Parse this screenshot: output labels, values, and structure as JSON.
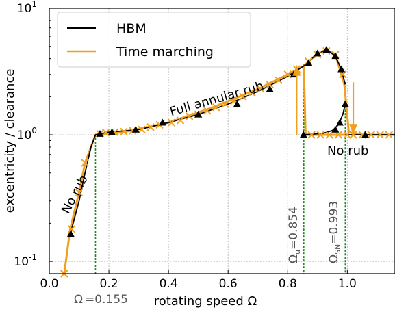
{
  "chart_data": {
    "type": "line",
    "xlabel": "rotating speed Ω",
    "ylabel": "excentricity / clearance",
    "xlim": [
      0.0,
      1.16
    ],
    "ylim": [
      0.08,
      10
    ],
    "y_scale": "log",
    "grid": true,
    "legend_position": "top-left",
    "x_ticks": [
      "0.0",
      "0.2",
      "0.4",
      "0.6",
      "0.8",
      "1.0"
    ],
    "x_tick_values": [
      0.0,
      0.2,
      0.4,
      0.6,
      0.8,
      1.0
    ],
    "y_ticks": [
      {
        "base": "10",
        "exp": "-1",
        "value": 0.1
      },
      {
        "base": "10",
        "exp": "0",
        "value": 1
      },
      {
        "base": "10",
        "exp": "1",
        "value": 10
      }
    ],
    "series": [
      {
        "name": "HBM",
        "color": "#000000",
        "marker": "triangle",
        "segments": [
          [
            [
              0.07,
              0.16
            ],
            [
              0.08,
              0.2
            ],
            [
              0.1,
              0.3
            ],
            [
              0.12,
              0.5
            ],
            [
              0.14,
              0.8
            ],
            [
              0.155,
              1.0
            ],
            [
              0.2,
              1.05
            ],
            [
              0.3,
              1.1
            ],
            [
              0.4,
              1.25
            ],
            [
              0.5,
              1.45
            ],
            [
              0.6,
              1.75
            ],
            [
              0.7,
              2.2
            ],
            [
              0.8,
              2.9
            ],
            [
              0.854,
              3.5
            ],
            [
              0.9,
              4.4
            ],
            [
              0.93,
              4.7
            ],
            [
              0.96,
              4.2
            ],
            [
              0.98,
              3.3
            ],
            [
              0.993,
              2.5
            ]
          ],
          [
            [
              0.854,
              1.0
            ],
            [
              0.88,
              1.01
            ],
            [
              0.92,
              1.03
            ],
            [
              0.95,
              1.08
            ],
            [
              0.97,
              1.2
            ],
            [
              0.985,
              1.45
            ],
            [
              0.993,
              1.75
            ]
          ],
          [
            [
              0.993,
              1.0
            ],
            [
              1.05,
              1.0
            ],
            [
              1.1,
              1.0
            ],
            [
              1.16,
              1.0
            ]
          ]
        ],
        "markers": [
          [
            0.072,
            0.165
          ],
          [
            0.17,
            1.02
          ],
          [
            0.21,
            1.05
          ],
          [
            0.29,
            1.1
          ],
          [
            0.38,
            1.25
          ],
          [
            0.5,
            1.45
          ],
          [
            0.63,
            1.75
          ],
          [
            0.74,
            2.3
          ],
          [
            0.82,
            3.0
          ],
          [
            0.87,
            3.7
          ],
          [
            0.9,
            4.4
          ],
          [
            0.93,
            4.7
          ],
          [
            0.96,
            4.2
          ],
          [
            0.98,
            3.3
          ],
          [
            0.993,
            1.75
          ],
          [
            0.96,
            1.1
          ],
          [
            0.975,
            1.25
          ],
          [
            0.853,
            1.0
          ],
          [
            1.06,
            1.0
          ]
        ]
      },
      {
        "name": "Time marching",
        "color": "#f0a020",
        "marker": "x",
        "segments": [
          [
            [
              0.05,
              0.08
            ],
            [
              0.07,
              0.18
            ],
            [
              0.1,
              0.35
            ],
            [
              0.12,
              0.6
            ],
            [
              0.155,
              1.0
            ],
            [
              0.25,
              1.05
            ],
            [
              0.4,
              1.25
            ],
            [
              0.55,
              1.65
            ],
            [
              0.7,
              2.3
            ],
            [
              0.8,
              3.0
            ],
            [
              0.854,
              3.5
            ],
            [
              0.9,
              4.4
            ],
            [
              0.93,
              4.7
            ],
            [
              0.96,
              4.3
            ],
            [
              0.99,
              2.5
            ],
            [
              1.005,
              1.05
            ],
            [
              1.05,
              1.0
            ],
            [
              1.16,
              1.0
            ]
          ],
          [
            [
              0.854,
              3.5
            ],
            [
              0.86,
              1.0
            ],
            [
              0.88,
              1.0
            ],
            [
              0.97,
              1.0
            ],
            [
              1.0,
              1.0
            ]
          ]
        ],
        "markers": [
          [
            0.05,
            0.08
          ],
          [
            0.075,
            0.18
          ],
          [
            0.1,
            0.35
          ],
          [
            0.12,
            0.6
          ],
          [
            0.17,
            1.02
          ],
          [
            0.19,
            1.04
          ],
          [
            0.22,
            1.05
          ],
          [
            0.25,
            1.06
          ],
          [
            0.28,
            1.08
          ],
          [
            0.31,
            1.1
          ],
          [
            0.34,
            1.15
          ],
          [
            0.37,
            1.2
          ],
          [
            0.41,
            1.25
          ],
          [
            0.44,
            1.3
          ],
          [
            0.47,
            1.4
          ],
          [
            0.5,
            1.45
          ],
          [
            0.53,
            1.55
          ],
          [
            0.56,
            1.65
          ],
          [
            0.59,
            1.75
          ],
          [
            0.62,
            1.85
          ],
          [
            0.65,
            2.0
          ],
          [
            0.68,
            2.15
          ],
          [
            0.71,
            2.3
          ],
          [
            0.74,
            2.5
          ],
          [
            0.77,
            2.7
          ],
          [
            0.8,
            3.0
          ],
          [
            0.83,
            3.3
          ],
          [
            0.87,
            3.8
          ],
          [
            0.9,
            4.3
          ],
          [
            0.93,
            4.6
          ],
          [
            0.96,
            4.3
          ],
          [
            0.985,
            3.0
          ],
          [
            0.88,
            1.0
          ],
          [
            0.91,
            1.0
          ],
          [
            0.94,
            1.0
          ],
          [
            0.97,
            1.0
          ],
          [
            1.0,
            1.0
          ],
          [
            1.02,
            1.0
          ],
          [
            1.05,
            1.0
          ],
          [
            1.08,
            1.0
          ],
          [
            1.11,
            1.0
          ],
          [
            1.14,
            1.0
          ]
        ]
      }
    ],
    "vlines": [
      0.155,
      0.854,
      0.993
    ],
    "annotations": {
      "full_rub": "Full annular rub",
      "no_rub_left": "No rub",
      "no_rub_right": "No rub",
      "omega_l": {
        "sym": "Ω",
        "sub": "l",
        "val": "=0.155"
      },
      "omega_u": {
        "sym": "Ω",
        "sub": "u",
        "val": "=0.854"
      },
      "omega_sn": {
        "sym": "Ω",
        "sub": "SN",
        "val": "=0.993"
      }
    },
    "arrows": [
      {
        "x": 0.83,
        "from": 1.0,
        "to": 3.4,
        "dir": "up"
      },
      {
        "x": 1.02,
        "from": 2.6,
        "to": 1.05,
        "dir": "down"
      }
    ]
  }
}
